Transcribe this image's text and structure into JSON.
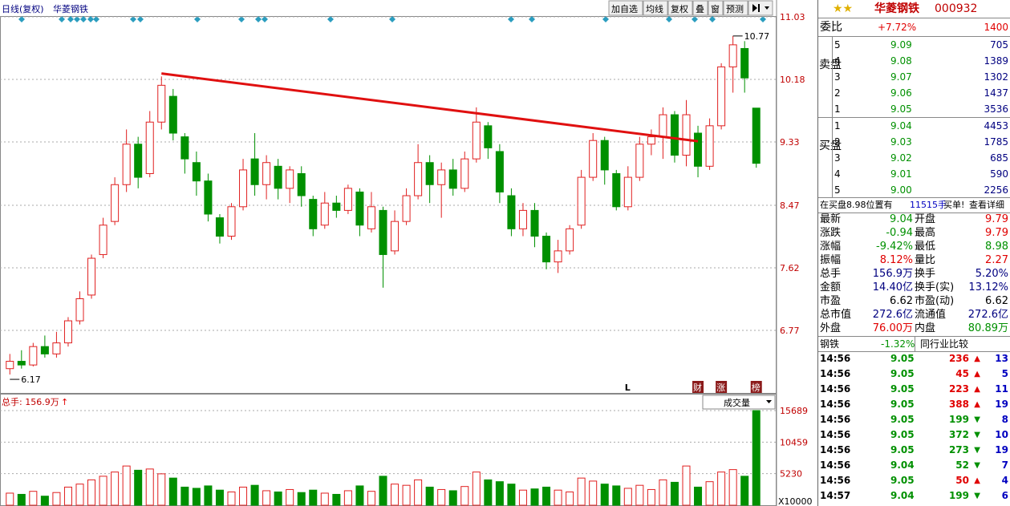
{
  "header": {
    "period": "日线(复权)",
    "name": "华菱钢铁",
    "buttons": [
      "加自选",
      "均线",
      "复权",
      "叠",
      "窗",
      "预测"
    ]
  },
  "chart_data": {
    "type": "candlestick",
    "candles": [
      [
        6.25,
        6.35,
        6.45,
        6.17
      ],
      [
        6.35,
        6.3,
        6.5,
        6.25
      ],
      [
        6.3,
        6.55,
        6.6,
        6.28
      ],
      [
        6.55,
        6.45,
        6.7,
        6.4
      ],
      [
        6.45,
        6.6,
        6.75,
        6.4
      ],
      [
        6.6,
        6.9,
        6.95,
        6.55
      ],
      [
        6.9,
        7.2,
        7.3,
        6.85
      ],
      [
        7.25,
        7.75,
        7.8,
        7.2
      ],
      [
        7.8,
        8.2,
        8.3,
        7.75
      ],
      [
        8.25,
        8.75,
        8.85,
        8.2
      ],
      [
        8.75,
        9.3,
        9.5,
        8.65
      ],
      [
        9.3,
        8.85,
        9.4,
        8.7
      ],
      [
        8.9,
        9.6,
        9.75,
        8.85
      ],
      [
        9.6,
        10.1,
        10.22,
        9.5
      ],
      [
        9.95,
        9.45,
        10.05,
        9.35
      ],
      [
        9.4,
        9.1,
        9.45,
        8.9
      ],
      [
        9.05,
        8.8,
        9.2,
        8.6
      ],
      [
        8.8,
        8.35,
        8.9,
        8.25
      ],
      [
        8.3,
        8.05,
        8.35,
        7.95
      ],
      [
        8.05,
        8.45,
        8.5,
        8.0
      ],
      [
        8.45,
        8.95,
        9.1,
        8.4
      ],
      [
        9.1,
        8.75,
        9.45,
        8.6
      ],
      [
        8.75,
        9.05,
        9.15,
        8.55
      ],
      [
        9.0,
        8.7,
        9.1,
        8.55
      ],
      [
        8.7,
        8.95,
        9.0,
        8.5
      ],
      [
        8.9,
        8.6,
        9.0,
        8.45
      ],
      [
        8.55,
        8.15,
        8.6,
        8.05
      ],
      [
        8.2,
        8.5,
        8.65,
        8.15
      ],
      [
        8.5,
        8.4,
        8.6,
        8.3
      ],
      [
        8.4,
        8.7,
        8.75,
        8.35
      ],
      [
        8.65,
        8.2,
        8.7,
        8.05
      ],
      [
        8.15,
        8.45,
        8.65,
        8.1
      ],
      [
        8.4,
        7.8,
        8.45,
        7.35
      ],
      [
        7.85,
        8.25,
        8.4,
        7.8
      ],
      [
        8.25,
        8.6,
        8.7,
        8.2
      ],
      [
        8.6,
        9.05,
        9.3,
        8.55
      ],
      [
        9.05,
        8.75,
        9.15,
        8.5
      ],
      [
        8.75,
        8.95,
        9.05,
        8.3
      ],
      [
        8.95,
        8.7,
        9.1,
        8.6
      ],
      [
        8.7,
        9.1,
        9.2,
        8.65
      ],
      [
        9.1,
        9.6,
        9.8,
        9.05
      ],
      [
        9.55,
        9.25,
        9.6,
        9.1
      ],
      [
        9.2,
        8.65,
        9.3,
        8.5
      ],
      [
        8.6,
        8.15,
        8.7,
        8.05
      ],
      [
        8.15,
        8.4,
        8.5,
        8.05
      ],
      [
        8.4,
        8.05,
        8.5,
        7.9
      ],
      [
        8.05,
        7.7,
        8.1,
        7.6
      ],
      [
        7.7,
        7.85,
        8.0,
        7.55
      ],
      [
        7.85,
        8.15,
        8.2,
        7.8
      ],
      [
        8.2,
        8.85,
        8.95,
        8.15
      ],
      [
        8.85,
        9.35,
        9.45,
        8.8
      ],
      [
        9.35,
        8.95,
        9.4,
        8.75
      ],
      [
        8.9,
        8.45,
        8.95,
        8.4
      ],
      [
        8.45,
        8.85,
        9.0,
        8.4
      ],
      [
        8.85,
        9.3,
        9.4,
        8.8
      ],
      [
        9.3,
        9.4,
        9.5,
        9.15
      ],
      [
        9.4,
        9.7,
        9.8,
        9.1
      ],
      [
        9.7,
        9.15,
        9.75,
        9.05
      ],
      [
        9.15,
        9.7,
        9.9,
        9.0
      ],
      [
        9.45,
        9.0,
        9.55,
        8.85
      ],
      [
        9.0,
        9.55,
        9.65,
        8.95
      ],
      [
        9.55,
        10.35,
        10.4,
        9.5
      ],
      [
        10.35,
        10.65,
        10.77,
        10.0
      ],
      [
        10.6,
        10.2,
        10.7,
        10.0
      ],
      [
        9.79,
        9.04,
        9.79,
        8.98
      ]
    ],
    "volumes": [
      2000,
      1800,
      2300,
      1500,
      2100,
      3000,
      3500,
      4200,
      4800,
      5500,
      6500,
      5800,
      6000,
      5200,
      4500,
      3000,
      2800,
      3200,
      2500,
      2200,
      3000,
      3300,
      2400,
      2200,
      2600,
      2100,
      2500,
      2000,
      1800,
      2400,
      3200,
      2300,
      4800,
      3500,
      3300,
      4200,
      3000,
      2600,
      2400,
      3100,
      5500,
      4200,
      3900,
      3500,
      2500,
      2700,
      3000,
      2500,
      2200,
      4500,
      4000,
      3500,
      3200,
      2800,
      3300,
      2600,
      4200,
      3800,
      6500,
      3000,
      3900,
      5500,
      5900,
      4800,
      15689
    ],
    "ylim": [
      5.92,
      11.03
    ],
    "yticks": [
      11.03,
      10.18,
      9.33,
      8.47,
      7.62,
      6.77
    ],
    "volume_ylim": [
      0,
      15689
    ],
    "volume_yticks": [
      5230,
      10459,
      15689
    ],
    "volume_unit": "X10000",
    "volume_label": "总手: 156.9万",
    "volume_arrow": "↑",
    "volume_selector": "成交量",
    "high_label": 10.77,
    "low_label": 6.17,
    "trendline": {
      "from": [
        13,
        10.26
      ],
      "to": [
        59,
        9.34
      ],
      "color": "#e01010"
    },
    "markers": [
      {
        "candle": 53,
        "text": "L"
      },
      {
        "candle": 59,
        "text": "财"
      },
      {
        "candle": 61,
        "text": "涨"
      },
      {
        "candle": 64,
        "text": "榜"
      }
    ],
    "up_color": "#e02020",
    "down_color": "#009000"
  },
  "quote": {
    "name": "华菱钢铁",
    "code": "000932",
    "ratio": [
      "委比",
      "+7.72%",
      "1400"
    ],
    "sell_label": "卖盘",
    "buy_label": "买盘",
    "sell": [
      [
        "5",
        "9.09",
        "705"
      ],
      [
        "4",
        "9.08",
        "1389"
      ],
      [
        "3",
        "9.07",
        "1302"
      ],
      [
        "2",
        "9.06",
        "1437"
      ],
      [
        "1",
        "9.05",
        "3536"
      ]
    ],
    "buy": [
      [
        "1",
        "9.04",
        "4453"
      ],
      [
        "2",
        "9.03",
        "1785"
      ],
      [
        "3",
        "9.02",
        "685"
      ],
      [
        "4",
        "9.01",
        "590"
      ],
      [
        "5",
        "9.00",
        "2256"
      ]
    ],
    "notice": [
      "在买盘8.98位置有",
      "11515手",
      "买单!",
      "查看详细"
    ],
    "stats": [
      [
        "最新",
        "9.04",
        "开盘",
        "9.79"
      ],
      [
        "涨跌",
        "-0.94",
        "最高",
        "9.79"
      ],
      [
        "涨幅",
        "-9.42%",
        "最低",
        "8.98"
      ],
      [
        "振幅",
        "8.12%",
        "量比",
        "2.27"
      ],
      [
        "总手",
        "156.9万",
        "换手",
        "5.20%"
      ],
      [
        "金额",
        "14.40亿",
        "换手(实)",
        "13.12%"
      ],
      [
        "市盈",
        "6.62",
        "市盈(动)",
        "6.62"
      ],
      [
        "总市值",
        "272.6亿",
        "流通值",
        "272.6亿"
      ],
      [
        "外盘",
        "76.00万",
        "内盘",
        "80.89万"
      ]
    ],
    "sector": [
      "钢铁",
      "-1.32%",
      "同行业比较"
    ],
    "ticks": [
      [
        "14:56",
        "9.05",
        "236",
        "13"
      ],
      [
        "14:56",
        "9.05",
        "45",
        "5"
      ],
      [
        "14:56",
        "9.05",
        "223",
        "11"
      ],
      [
        "14:56",
        "9.05",
        "388",
        "19"
      ],
      [
        "14:56",
        "9.05",
        "199",
        "8"
      ],
      [
        "14:56",
        "9.05",
        "372",
        "10"
      ],
      [
        "14:56",
        "9.05",
        "273",
        "19"
      ],
      [
        "14:56",
        "9.04",
        "52",
        "7"
      ],
      [
        "14:56",
        "9.05",
        "50",
        "4"
      ],
      [
        "14:57",
        "9.04",
        "199",
        "6"
      ]
    ],
    "tick_dirs": [
      "up",
      "up",
      "up",
      "up",
      "down",
      "down",
      "down",
      "down",
      "up",
      "down"
    ]
  }
}
